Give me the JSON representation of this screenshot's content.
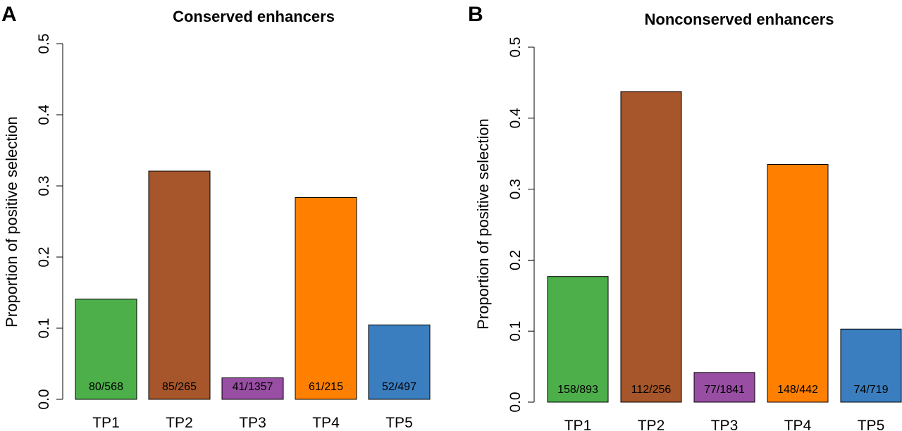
{
  "chart_data": [
    {
      "type": "bar",
      "panel": "A",
      "title": "Conserved enhancers",
      "ylabel": "Proportion of positive selection",
      "xlabel": "",
      "ylim": [
        0,
        0.5
      ],
      "yticks": [
        "0.0",
        "0.1",
        "0.2",
        "0.3",
        "0.4",
        "0.5"
      ],
      "categories": [
        "TP1",
        "TP2",
        "TP3",
        "TP4",
        "TP5"
      ],
      "values": [
        0.1408,
        0.3208,
        0.0302,
        0.2837,
        0.1046
      ],
      "labels": [
        "80/568",
        "85/265",
        "41/1357",
        "61/215",
        "52/497"
      ],
      "colors": [
        "#4daf4a",
        "#a6562a",
        "#984ea3",
        "#ff7f00",
        "#3a7ebf"
      ],
      "grid": false
    },
    {
      "type": "bar",
      "panel": "B",
      "title": "Nonconserved enhancers",
      "ylabel": "Proportion of positive selection",
      "xlabel": "",
      "ylim": [
        0,
        0.5
      ],
      "yticks": [
        "0.0",
        "0.1",
        "0.2",
        "0.3",
        "0.4",
        "0.5"
      ],
      "categories": [
        "TP1",
        "TP2",
        "TP3",
        "TP4",
        "TP5"
      ],
      "values": [
        0.1769,
        0.4375,
        0.0418,
        0.3348,
        0.1029
      ],
      "labels": [
        "158/893",
        "112/256",
        "77/1841",
        "148/442",
        "74/719"
      ],
      "colors": [
        "#4daf4a",
        "#a6562a",
        "#984ea3",
        "#ff7f00",
        "#3a7ebf"
      ],
      "grid": false
    }
  ]
}
